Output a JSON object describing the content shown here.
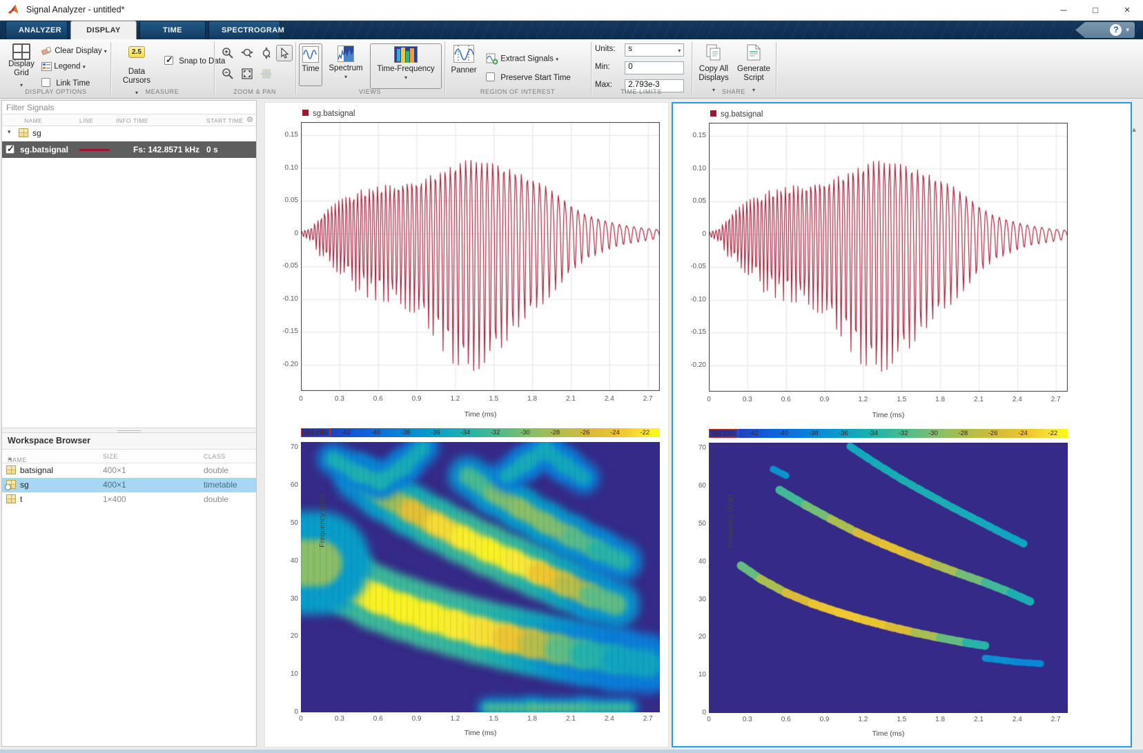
{
  "window": {
    "title": "Signal Analyzer - untitled*"
  },
  "icons": {
    "minimize": "─",
    "maximize": "□",
    "close": "×",
    "help": "?",
    "dropdown": "▾",
    "sort_asc": "▲",
    "gear": "⚙",
    "tree_collapse": "▾",
    "collapse_toolstrip": "▲"
  },
  "tabs": [
    {
      "label": "ANALYZER",
      "active": false
    },
    {
      "label": "DISPLAY",
      "active": true
    },
    {
      "label": "TIME",
      "active": false
    },
    {
      "label": "SPECTROGRAM",
      "active": false
    }
  ],
  "toolstrip": {
    "display_options": {
      "label": "DISPLAY OPTIONS",
      "display_grid": "Display Grid",
      "clear_display": "Clear Display",
      "legend": "Legend",
      "link_time": "Link Time",
      "link_time_checked": false
    },
    "measure": {
      "label": "MEASURE",
      "data_cursors": "Data Cursors",
      "cursor_icon_text": "2.5",
      "snap_to_data": "Snap to Data",
      "snap_checked": true
    },
    "zoom_pan": {
      "label": "ZOOM & PAN"
    },
    "views": {
      "label": "VIEWS",
      "time": "Time",
      "spectrum": "Spectrum",
      "time_frequency": "Time-Frequency"
    },
    "roi": {
      "label": "REGION OF INTEREST",
      "panner": "Panner",
      "extract_signals": "Extract Signals",
      "preserve_start_time": "Preserve Start Time",
      "preserve_checked": false
    },
    "time_limits": {
      "label": "TIME LIMITS",
      "units_label": "Units:",
      "units_value": "s",
      "min_label": "Min:",
      "min_value": "0",
      "max_label": "Max:",
      "max_value": "2.793e-3"
    },
    "share": {
      "label": "SHARE",
      "copy_all_line1": "Copy All",
      "copy_all_line2": "Displays",
      "generate_line1": "Generate",
      "generate_line2": "Script"
    }
  },
  "signal_table": {
    "filter_placeholder": "Filter Signals",
    "columns": [
      "NAME",
      "LINE",
      "INFO",
      "TIME",
      "START TIME"
    ],
    "group": "sg",
    "row": {
      "name": "sg.batsignal",
      "checked": true,
      "time": "Fs: 142.8571 kHz",
      "start_time": "0 s",
      "line_color": "#a2142f"
    }
  },
  "workspace": {
    "title": "Workspace Browser",
    "columns": [
      "NAME",
      "SIZE",
      "CLASS"
    ],
    "rows": [
      {
        "name": "batsignal",
        "size": "400×1",
        "class": "double",
        "selected": false
      },
      {
        "name": "sg",
        "size": "400×1",
        "class": "timetable",
        "selected": true
      },
      {
        "name": "t",
        "size": "1×400",
        "class": "double",
        "selected": false
      }
    ]
  },
  "displays": {
    "legend": "sg.batsignal",
    "time_xlabel": "Time (ms)",
    "spec_ylabel": "Frequency (kHz)",
    "selected_display": 2
  },
  "chart_data": {
    "time_plot": {
      "type": "line",
      "title": "sg.batsignal",
      "xlabel": "Time (ms)",
      "ylabel": "",
      "xlim": [
        0,
        2.793
      ],
      "ylim": [
        -0.24,
        0.17
      ],
      "x_ticks": [
        0,
        0.3,
        0.6,
        0.9,
        1.2,
        1.5,
        1.8,
        2.1,
        2.4,
        2.7
      ],
      "x_tick_labels": [
        "0",
        "0.3",
        "0.6",
        "0.9",
        "1.2",
        "1.5",
        "1.8",
        "2.1",
        "2.4",
        "2.7"
      ],
      "y_ticks": [
        0.15,
        0.1,
        0.05,
        0,
        -0.05,
        -0.1,
        -0.15,
        -0.2
      ],
      "y_tick_labels": [
        "0.15",
        "0.10",
        "0.05",
        "0",
        "-0.05",
        "-0.10",
        "-0.15",
        "-0.20"
      ],
      "grid": true,
      "series": [
        {
          "name": "sg.batsignal",
          "color": "#a2142f",
          "n_samples": 400,
          "sample_rate_khz": 142.8571,
          "description": "bat chirp, ~70 cycles, frequency sweeps ~40 kHz down to ~14 kHz, peak amplitude +0.15 / -0.21 near t=1.3 ms",
          "freq": {
            "f0": 41,
            "k": 0.52
          },
          "harmonic": {
            "amp": 0.18,
            "phase": 1.1
          },
          "neg_asym": {
            "center": 1.28,
            "width": 0.38,
            "gain": 0.4
          },
          "envelope": [
            [
              0,
              0.004
            ],
            [
              0.08,
              0.012
            ],
            [
              0.18,
              0.045
            ],
            [
              0.3,
              0.07
            ],
            [
              0.45,
              0.09
            ],
            [
              0.6,
              0.1
            ],
            [
              0.75,
              0.105
            ],
            [
              0.9,
              0.112
            ],
            [
              1.05,
              0.125
            ],
            [
              1.2,
              0.145
            ],
            [
              1.32,
              0.156
            ],
            [
              1.45,
              0.15
            ],
            [
              1.6,
              0.138
            ],
            [
              1.75,
              0.12
            ],
            [
              1.9,
              0.1
            ],
            [
              2.0,
              0.08
            ],
            [
              2.1,
              0.06
            ],
            [
              2.2,
              0.042
            ],
            [
              2.35,
              0.028
            ],
            [
              2.5,
              0.018
            ],
            [
              2.65,
              0.012
            ],
            [
              2.793,
              0.008
            ]
          ]
        }
      ]
    },
    "spectrogram_shared": {
      "type": "heatmap",
      "xlabel": "Time (ms)",
      "ylabel": "Frequency (kHz)",
      "xlim": [
        0,
        2.793
      ],
      "flim": [
        0,
        71.5
      ],
      "f_ticks": [
        70,
        60,
        50,
        40,
        30,
        20,
        10,
        0
      ],
      "f_tick_labels": [
        "70",
        "60",
        "50",
        "40",
        "30",
        "20",
        "10",
        "0"
      ],
      "colorbar_labels": [
        "-44 (dB)",
        "-42",
        "-40",
        "-38",
        "-36",
        "-34",
        "-32",
        "-30",
        "-28",
        "-26",
        "-24",
        "-22"
      ],
      "colorbar_range_db": [
        -45,
        -21
      ],
      "background": "#352a87"
    },
    "spectrogram_display1": {
      "style": "band",
      "note": "smoothed STFT spectrogram, wide chirp bands with yellow cores",
      "tracks": [
        {
          "w": 7.5,
          "pts": [
            [
              0.06,
              40.5,
              0.5
            ],
            [
              0.2,
              37.5,
              0.8
            ],
            [
              0.4,
              33.5,
              0.95
            ],
            [
              0.6,
              30,
              1
            ],
            [
              0.8,
              27.5,
              1
            ],
            [
              1.0,
              25.2,
              1
            ],
            [
              1.2,
              23.2,
              0.98
            ],
            [
              1.4,
              21.3,
              0.95
            ],
            [
              1.6,
              19.7,
              0.88
            ],
            [
              1.8,
              18.2,
              0.75
            ],
            [
              2.0,
              16.8,
              0.55
            ],
            [
              2.2,
              15.4,
              0.38
            ],
            [
              2.45,
              14,
              0.3
            ],
            [
              2.7,
              12.8,
              0.22
            ]
          ]
        },
        {
          "w": 6,
          "pts": [
            [
              0.45,
              62,
              0.35
            ],
            [
              0.65,
              57.5,
              0.5
            ],
            [
              0.85,
              53.5,
              0.7
            ],
            [
              1.05,
              49.8,
              0.85
            ],
            [
              1.25,
              46.3,
              0.95
            ],
            [
              1.45,
              43,
              1
            ],
            [
              1.65,
              40,
              1
            ],
            [
              1.85,
              37,
              0.9
            ],
            [
              2.05,
              34,
              0.75
            ],
            [
              2.25,
              31,
              0.55
            ],
            [
              2.45,
              28.5,
              0.38
            ]
          ]
        },
        {
          "w": 5,
          "pts": [
            [
              1.3,
              62.5,
              0.35
            ],
            [
              1.5,
              58,
              0.5
            ],
            [
              1.7,
              54,
              0.55
            ],
            [
              1.9,
              50,
              0.55
            ],
            [
              2.1,
              46.5,
              0.5
            ],
            [
              2.3,
              43,
              0.4
            ],
            [
              2.5,
              40,
              0.3
            ]
          ]
        },
        {
          "w": 4,
          "pts": [
            [
              0.25,
              67,
              0.3
            ],
            [
              0.45,
              63,
              0.33
            ],
            [
              0.62,
              61,
              0.33
            ],
            [
              0.8,
              65,
              0.3
            ],
            [
              0.95,
              70,
              0.28
            ]
          ]
        },
        {
          "w": 4,
          "pts": [
            [
              1.6,
              62.5,
              0.28
            ],
            [
              1.75,
              66,
              0.3
            ],
            [
              1.9,
              69.5,
              0.28
            ],
            [
              2.05,
              65.5,
              0.28
            ],
            [
              2.2,
              62,
              0.26
            ]
          ]
        },
        {
          "w": 13,
          "pts": [
            [
              0.0,
              39.5,
              0.55
            ],
            [
              0.14,
              39.5,
              0.55
            ]
          ]
        },
        {
          "w": 2.5,
          "pts": [
            [
              1.45,
              1.2,
              0.4
            ],
            [
              1.8,
              1.2,
              0.45
            ],
            [
              2.2,
              1.2,
              0.45
            ],
            [
              2.55,
              1.2,
              0.35
            ]
          ]
        }
      ]
    },
    "spectrogram_display2": {
      "style": "thin",
      "note": "sharpened / reassigned spectrogram, thin fragmented chirp ridges",
      "tracks": [
        {
          "w": 2.2,
          "pts": [
            [
              0.25,
              39,
              0.45
            ],
            [
              0.4,
              35.5,
              0.6
            ],
            [
              0.6,
              31.8,
              0.75
            ],
            [
              0.8,
              29,
              0.85
            ],
            [
              1.0,
              26.7,
              0.9
            ],
            [
              1.2,
              24.7,
              0.9
            ],
            [
              1.4,
              22.9,
              0.85
            ],
            [
              1.6,
              21.3,
              0.75
            ],
            [
              1.8,
              19.9,
              0.6
            ],
            [
              2.0,
              18.6,
              0.45
            ],
            [
              2.15,
              17.8,
              0.32
            ]
          ]
        },
        {
          "w": 2.2,
          "pts": [
            [
              0.55,
              59,
              0.4
            ],
            [
              0.75,
              55,
              0.5
            ],
            [
              0.95,
              51.3,
              0.6
            ],
            [
              1.15,
              47.8,
              0.75
            ],
            [
              1.35,
              44.8,
              0.85
            ],
            [
              1.55,
              42,
              0.85
            ],
            [
              1.75,
              39.4,
              0.75
            ],
            [
              1.95,
              36.9,
              0.6
            ],
            [
              2.15,
              34.5,
              0.5
            ],
            [
              2.35,
              31.8,
              0.4
            ],
            [
              2.5,
              29.5,
              0.3
            ]
          ]
        },
        {
          "w": 2.0,
          "pts": [
            [
              1.1,
              70.5,
              0.3
            ],
            [
              1.3,
              66,
              0.32
            ],
            [
              1.5,
              61.8,
              0.34
            ],
            [
              1.7,
              58,
              0.35
            ],
            [
              1.9,
              54.3,
              0.33
            ],
            [
              2.1,
              50.8,
              0.32
            ],
            [
              2.3,
              47.3,
              0.3
            ],
            [
              2.45,
              44.8,
              0.28
            ]
          ]
        },
        {
          "w": 1.8,
          "pts": [
            [
              0.5,
              64.5,
              0.22
            ],
            [
              0.62,
              62.5,
              0.2
            ]
          ]
        },
        {
          "w": 1.8,
          "pts": [
            [
              2.15,
              14.5,
              0.2
            ],
            [
              2.4,
              13.5,
              0.18
            ],
            [
              2.6,
              13,
              0.15
            ]
          ]
        }
      ]
    }
  }
}
